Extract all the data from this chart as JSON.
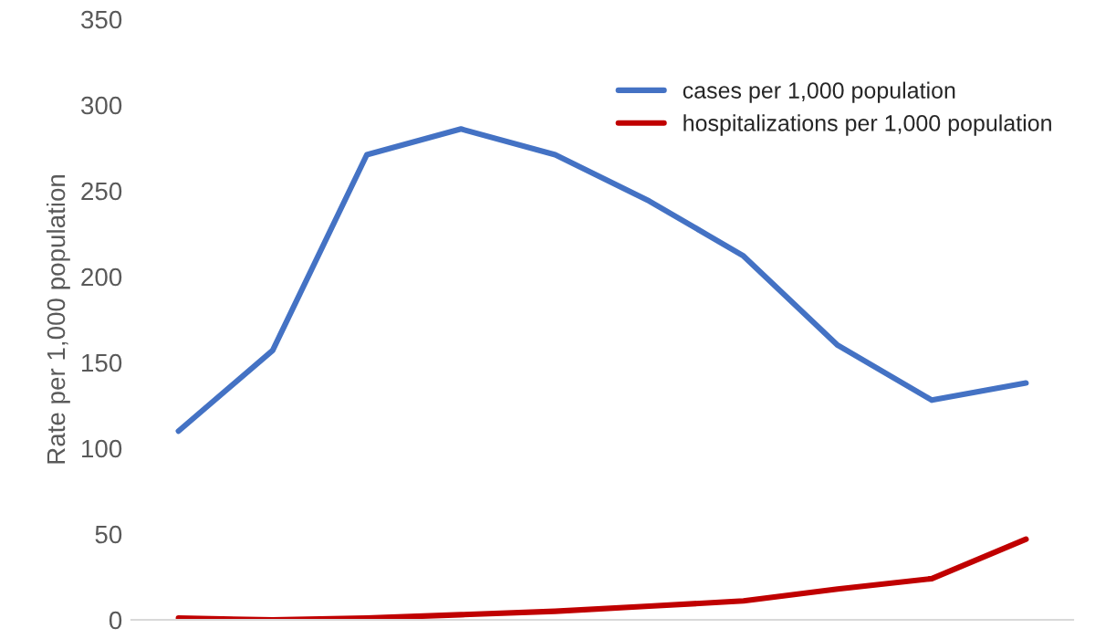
{
  "chart_data": {
    "type": "line",
    "ylabel": "Rate per 1,000 population",
    "categories": [
      null,
      null,
      null,
      null,
      null,
      null,
      null,
      null,
      null,
      null
    ],
    "series": [
      {
        "name": "cases per 1,000 population",
        "color": "#4472c4",
        "values": [
          110,
          157,
          271,
          286,
          271,
          244,
          212,
          160,
          128,
          138
        ]
      },
      {
        "name": "hospitalizations per 1,000 population",
        "color": "#c00000",
        "values": [
          1,
          0,
          1,
          3,
          5,
          8,
          11,
          18,
          24,
          47
        ]
      }
    ],
    "ylim": [
      0,
      350
    ],
    "yticks": [
      0,
      50,
      100,
      150,
      200,
      250,
      300,
      350
    ],
    "grid": false,
    "legend": "top right",
    "tick_labels": "y",
    "marker": "none",
    "line_style": "solid"
  }
}
